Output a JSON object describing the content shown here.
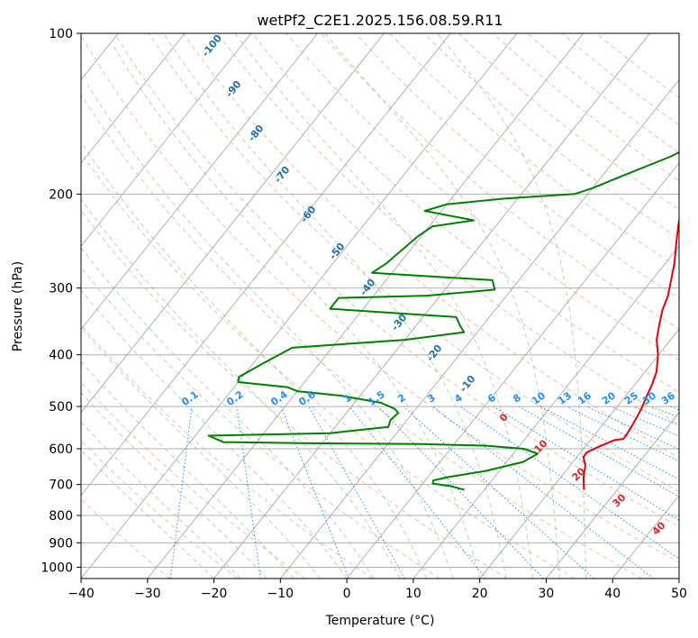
{
  "chart_data": {
    "type": "line",
    "title": "wetPf2_C2E1.2025.156.08.59.R11",
    "xlabel": "Temperature (°C)",
    "ylabel": "Pressure (hPa)",
    "xlim": [
      -40,
      50
    ],
    "ylim": [
      1050,
      100
    ],
    "y_scale": "log",
    "grid": true,
    "x_ticks": [
      "−40",
      "−30",
      "−20",
      "−10",
      "0",
      "10",
      "20",
      "30",
      "40",
      "50"
    ],
    "y_ticks": [
      "100",
      "200",
      "300",
      "400",
      "500",
      "600",
      "700",
      "800",
      "900",
      "1000"
    ],
    "colors": {
      "temperature": "#e8000b",
      "dewpoint": "#008000",
      "isotherm": "#a0a0a0",
      "dry_adiabat": "#f4a582",
      "moist_adiabat": "#74c476",
      "mixing_ratio": "#1f8fff",
      "isotherm_label": "#1f6fb4",
      "adiabat_label": "#d62728"
    },
    "isotherm_labels": [
      "-100",
      "-90",
      "-80",
      "-70",
      "-60",
      "-50",
      "-40",
      "-30",
      "-20",
      "-10"
    ],
    "mixing_ratio_labels": [
      "0.1",
      "0.2",
      "0.4",
      "0.6",
      "1",
      "1.5",
      "2",
      "3",
      "4",
      "6",
      "8",
      "10",
      "13",
      "16",
      "20",
      "25",
      "30",
      "36"
    ],
    "dry_adiabat_labels": [
      "0",
      "10",
      "20",
      "30",
      "40"
    ],
    "series": [
      {
        "name": "Temperature",
        "points": [
          [
            25.0,
            716
          ],
          [
            23.5,
            680
          ],
          [
            22.3,
            645
          ],
          [
            21.0,
            622
          ],
          [
            20.9,
            610
          ],
          [
            22.0,
            595
          ],
          [
            23.6,
            578
          ],
          [
            24.8,
            575
          ],
          [
            24.8,
            565
          ],
          [
            24.5,
            540
          ],
          [
            23.9,
            505
          ],
          [
            23.1,
            475
          ],
          [
            22.6,
            455
          ],
          [
            21.7,
            430
          ],
          [
            19.9,
            400
          ],
          [
            17.9,
            375
          ],
          [
            16.4,
            350
          ],
          [
            15.2,
            330
          ],
          [
            14.3,
            310
          ],
          [
            12.9,
            290
          ],
          [
            11.4,
            270
          ],
          [
            9.5,
            250
          ],
          [
            7.5,
            230
          ],
          [
            5.5,
            210
          ],
          [
            3.4,
            190
          ],
          [
            2.3,
            175
          ],
          [
            1.5,
            160
          ],
          [
            1.0,
            150
          ],
          [
            0.5,
            140
          ],
          [
            0.0,
            130
          ],
          [
            0.2,
            122
          ],
          [
            0.9,
            115
          ],
          [
            1.7,
            110
          ],
          [
            3.0,
            105
          ],
          [
            4.2,
            100
          ]
        ]
      },
      {
        "name": "Dewpoint",
        "points": [
          [
            7.0,
            716
          ],
          [
            4.5,
            705
          ],
          [
            1.5,
            697
          ],
          [
            1.2,
            688
          ],
          [
            3.0,
            678
          ],
          [
            8.0,
            660
          ],
          [
            12.5,
            635
          ],
          [
            13.7,
            613
          ],
          [
            11.0,
            600
          ],
          [
            5.0,
            592
          ],
          [
            -5.0,
            588
          ],
          [
            -22.0,
            586
          ],
          [
            -35.0,
            583
          ],
          [
            -38.0,
            567
          ],
          [
            -20.0,
            561
          ],
          [
            -12.0,
            546
          ],
          [
            -12.5,
            530
          ],
          [
            -12.2,
            514
          ],
          [
            -13.2,
            505
          ],
          [
            -16.0,
            492
          ],
          [
            -23.0,
            477
          ],
          [
            -30.0,
            468
          ],
          [
            -32.0,
            460
          ],
          [
            -40.0,
            450
          ],
          [
            -40.5,
            440
          ],
          [
            -38.5,
            415
          ],
          [
            -36.0,
            388
          ],
          [
            -20.0,
            375
          ],
          [
            -12.0,
            363
          ],
          [
            -13.5,
            352
          ],
          [
            -15.0,
            340
          ],
          [
            -35.0,
            328
          ],
          [
            -35.0,
            313
          ],
          [
            -22.0,
            310
          ],
          [
            -12.5,
            302
          ],
          [
            -14.0,
            290
          ],
          [
            -33.0,
            281
          ],
          [
            -32.0,
            270
          ],
          [
            -30.5,
            240
          ],
          [
            -29.5,
            230
          ],
          [
            -24.0,
            224
          ],
          [
            -32.5,
            215
          ],
          [
            -30.0,
            209
          ],
          [
            -22.0,
            204
          ],
          [
            -12.0,
            200
          ],
          [
            -10.0,
            195
          ],
          [
            -7.0,
            185
          ],
          [
            -2.0,
            170
          ],
          [
            0.5,
            160
          ],
          [
            0.2,
            145
          ],
          [
            0.5,
            130
          ],
          [
            -0.5,
            120
          ],
          [
            -0.5,
            113
          ],
          [
            0.5,
            105
          ],
          [
            1.5,
            100
          ]
        ]
      }
    ]
  }
}
